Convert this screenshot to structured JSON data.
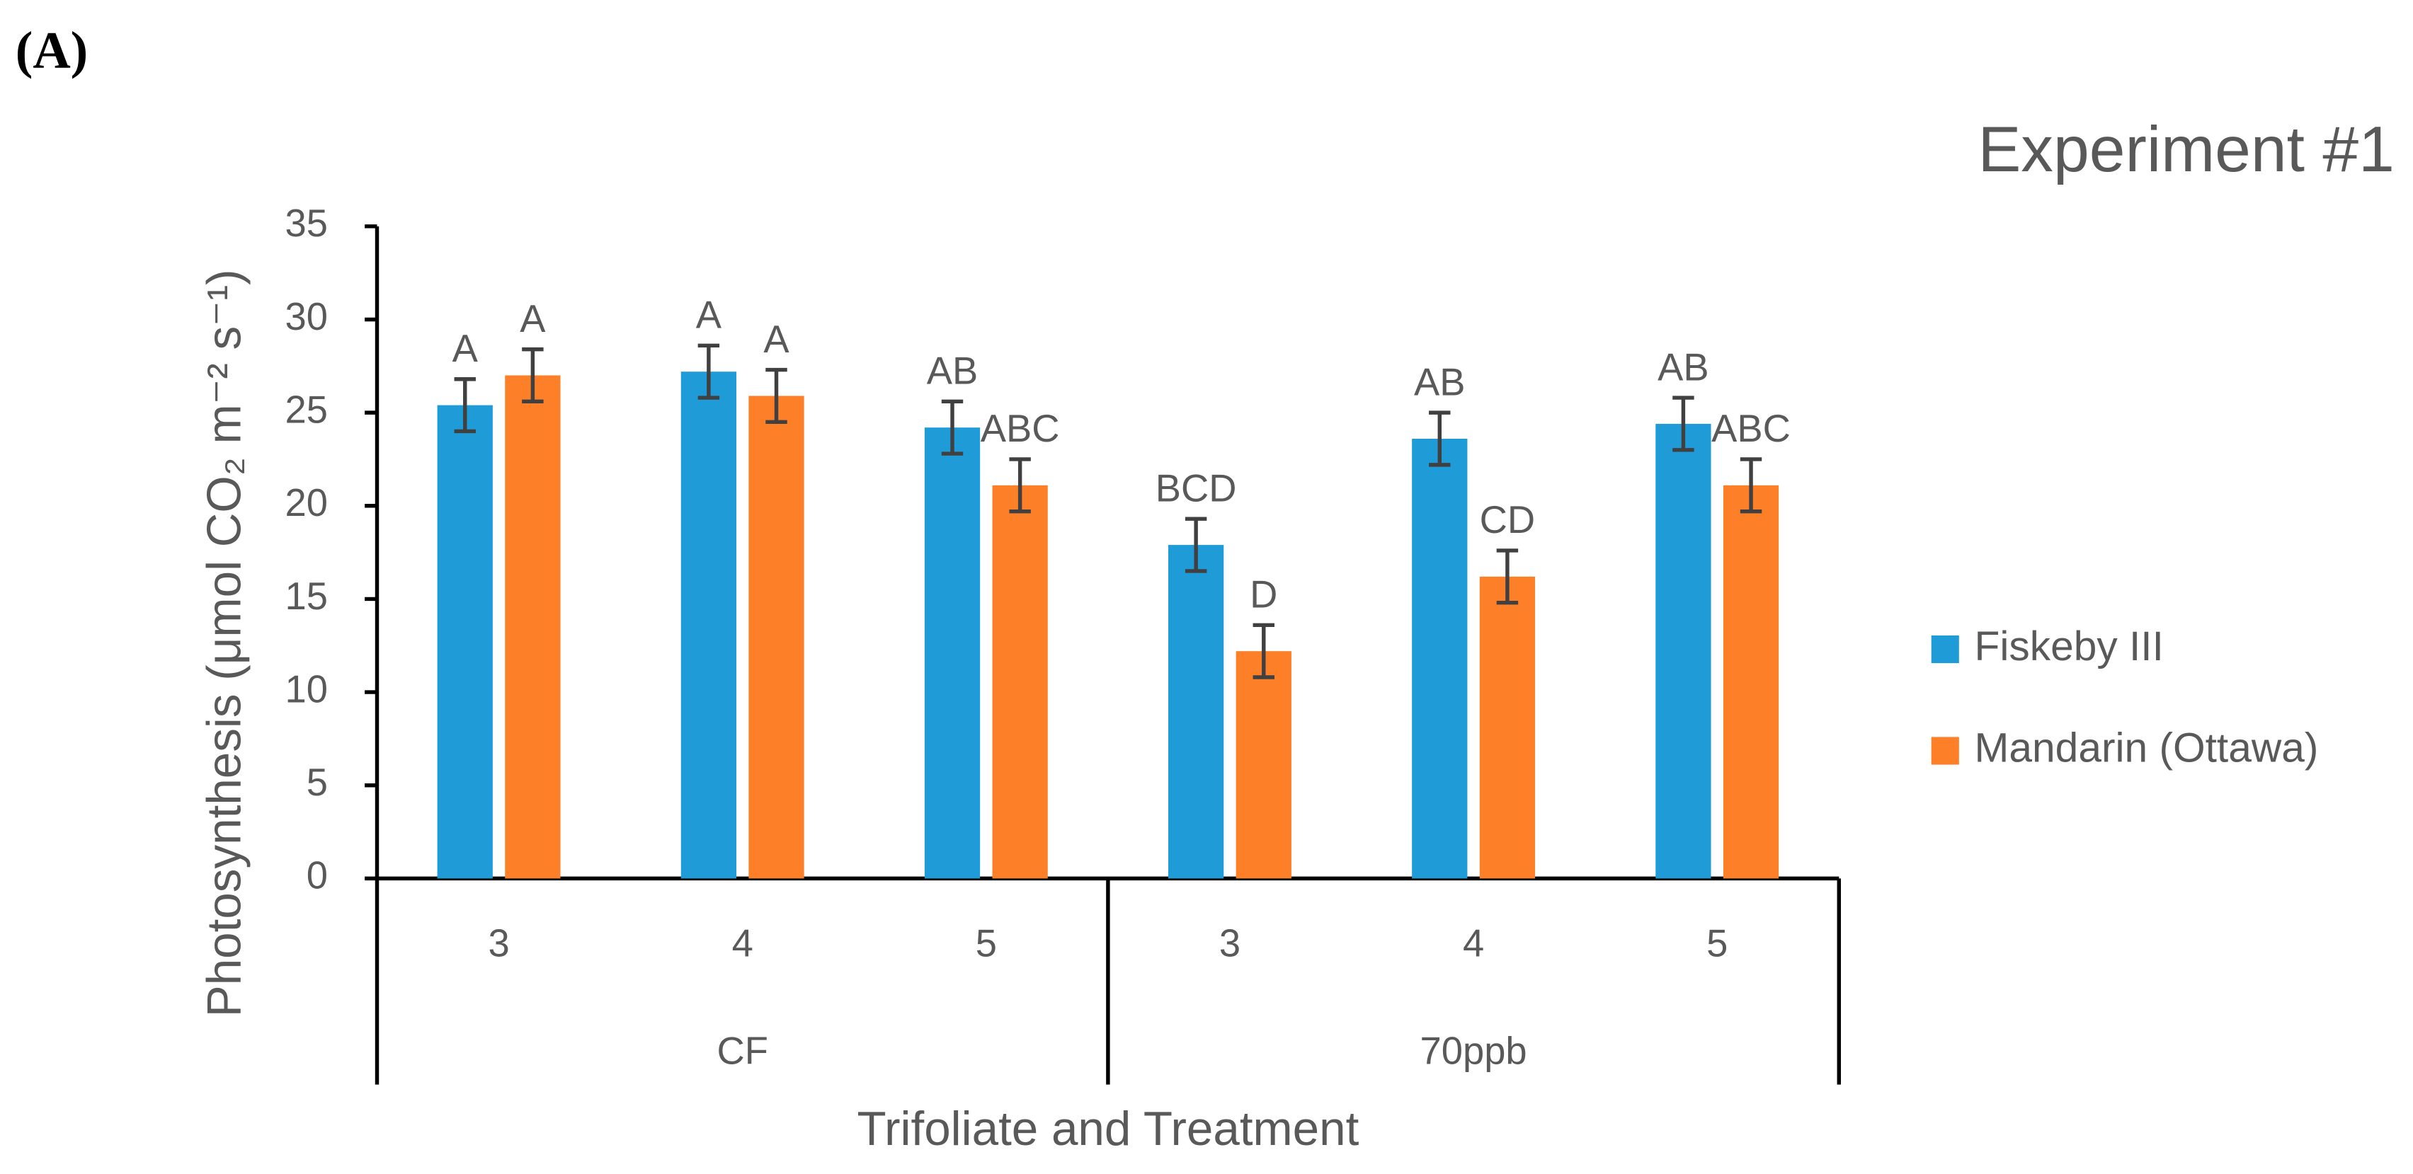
{
  "panel_label": "(A)",
  "chart_data": {
    "type": "bar",
    "title": "Experiment #1",
    "x_label": "Trifoliate and Treatment",
    "y_label": "Photosynthesis (μmol CO₂ m⁻² s⁻¹)",
    "groups": [
      {
        "label": "CF",
        "categories": [
          "3",
          "4",
          "5"
        ]
      },
      {
        "label": "70ppb",
        "categories": [
          "3",
          "4",
          "5"
        ]
      }
    ],
    "series": [
      {
        "name": "Fiskeby III",
        "color": "#1f9bd7",
        "values": [
          25.4,
          27.2,
          24.2,
          17.9,
          23.6,
          24.4
        ],
        "errors": [
          1.4,
          1.4,
          1.4,
          1.4,
          1.4,
          1.4
        ],
        "significance": [
          "A",
          "A",
          "AB",
          "BCD",
          "AB",
          "AB"
        ]
      },
      {
        "name": "Mandarin (Ottawa)",
        "color": "#fd7f28",
        "values": [
          27.0,
          25.9,
          21.1,
          12.2,
          16.2,
          21.1
        ],
        "errors": [
          1.4,
          1.4,
          1.4,
          1.4,
          1.4,
          1.4
        ],
        "significance": [
          "A",
          "A",
          "ABC",
          "D",
          "CD",
          "ABC"
        ]
      }
    ],
    "ylim": [
      0,
      35
    ],
    "yticks": [
      0,
      5,
      10,
      15,
      20,
      25,
      30,
      35
    ],
    "legend": "right"
  }
}
